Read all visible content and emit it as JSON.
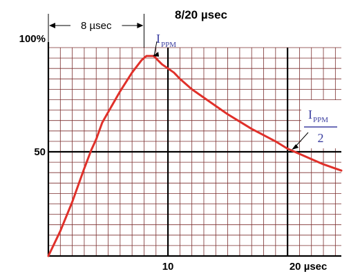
{
  "chart_data": {
    "type": "line",
    "title": "8/20 µsec",
    "xlim": [
      0,
      24.5
    ],
    "ylim": [
      0,
      100
    ],
    "x_ticks": [
      {
        "value": 10,
        "label": "10"
      },
      {
        "value": 20,
        "label": "20 µsec"
      }
    ],
    "y_ticks": [
      {
        "value": 100,
        "label": "100%"
      },
      {
        "value": 50,
        "label": "50"
      }
    ],
    "grid": true,
    "series": [
      {
        "color": "#e0302a",
        "points": [
          [
            0,
            0
          ],
          [
            1,
            12
          ],
          [
            2,
            26
          ],
          [
            3,
            42
          ],
          [
            3.6,
            51
          ],
          [
            4,
            56
          ],
          [
            4.5,
            64
          ],
          [
            5,
            69
          ],
          [
            6,
            79
          ],
          [
            7,
            88
          ],
          [
            7.8,
            94
          ],
          [
            8.2,
            96
          ],
          [
            8.8,
            96
          ],
          [
            9.5,
            92
          ],
          [
            10.5,
            88
          ],
          [
            11,
            85
          ],
          [
            12,
            80
          ],
          [
            13,
            76
          ],
          [
            14,
            72
          ],
          [
            15,
            68
          ],
          [
            16,
            64.5
          ],
          [
            17,
            61
          ],
          [
            18,
            58
          ],
          [
            19,
            55
          ],
          [
            20,
            51.5
          ],
          [
            21,
            49
          ],
          [
            22,
            46.5
          ],
          [
            23,
            44
          ],
          [
            24,
            42
          ],
          [
            24.5,
            41
          ]
        ]
      }
    ],
    "annotations": {
      "rise_time": {
        "label": "8 µsec",
        "from": 0,
        "to": 8
      },
      "peak": {
        "main": "I",
        "sub": "PPM",
        "x": 8.5,
        "y": 96
      },
      "half": {
        "main": "I",
        "sub": "PPM",
        "denominator": "2",
        "x": 20,
        "y": 50
      }
    },
    "colors": {
      "curve": "#e0302a",
      "grid_minor": "#7a2d2d",
      "grid_major": "#000000",
      "annotation_text": "#3c3fa0"
    }
  }
}
